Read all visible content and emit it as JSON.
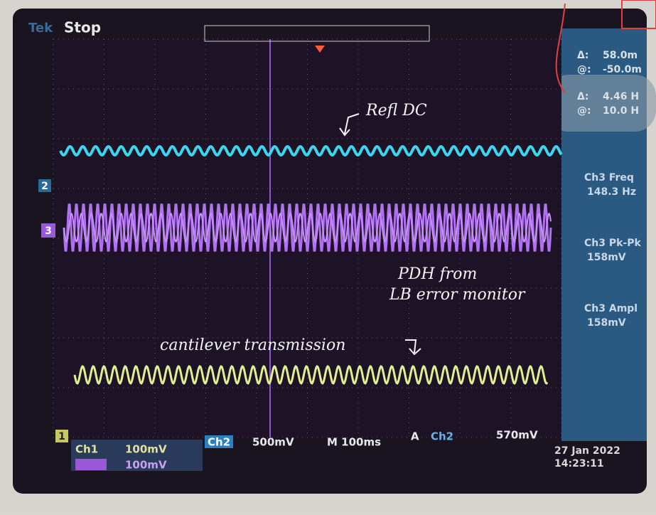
{
  "header": {
    "brand": "Tek",
    "status": "Stop"
  },
  "cursors": [
    {
      "label": "Δ:",
      "value": "58.0m"
    },
    {
      "label": "@:",
      "value": "-50.0m"
    },
    {
      "label": "Δ:",
      "value": "4.46 H"
    },
    {
      "label": "@:",
      "value": "10.0 H"
    }
  ],
  "measurements": [
    {
      "label": "Ch3 Freq",
      "value": "148.3 Hz"
    },
    {
      "label": "Ch3 Pk-Pk",
      "value": "158mV"
    },
    {
      "label": "Ch3 Ampl",
      "value": "158mV"
    }
  ],
  "markers": [
    "2",
    "3",
    "1"
  ],
  "settings": {
    "ch1": "Ch1",
    "ch1_scale": "100mV",
    "ch2": "Ch2",
    "ch2_scale": "500mV",
    "timebase": "M 100ms",
    "trigger": "A",
    "trigger_source": "Ch2",
    "trigger_level": "570mV",
    "ch3_scale": "100mV"
  },
  "datetime": {
    "date": "27 Jan  2022",
    "time": "14:23:11"
  },
  "annotations": {
    "refl": "Refl DC",
    "pdh_1": "PDH from",
    "pdh_2": "LB error monitor",
    "cantilever": "cantilever transmission"
  }
}
